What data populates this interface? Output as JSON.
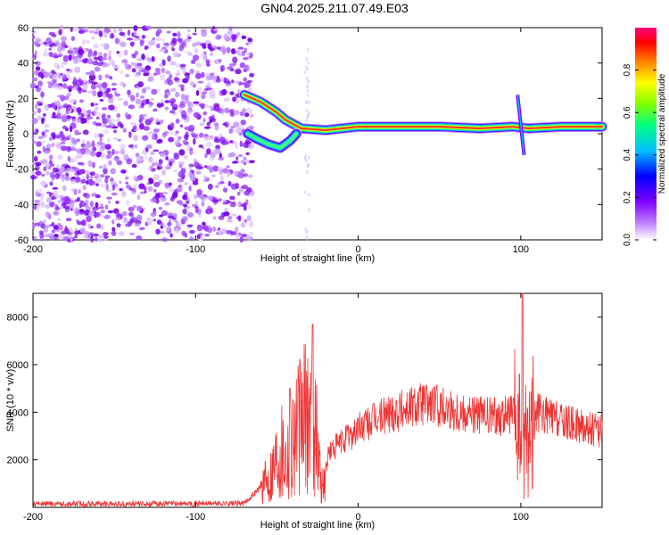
{
  "title": "GN04.2025.211.07.49.E03",
  "chart_data": [
    {
      "type": "heatmap",
      "xlabel": "Height of straight line (km)",
      "ylabel": "Frequency (Hz)",
      "xlim": [
        -200,
        150
      ],
      "ylim": [
        -60,
        60
      ],
      "x_ticks": [
        -200,
        -100,
        0,
        100
      ],
      "y_ticks": [
        -60,
        -40,
        -20,
        0,
        20,
        40,
        60
      ],
      "colorbar": {
        "label": "Normalized spectral amplitude",
        "range": [
          0,
          1
        ],
        "ticks": [
          0.0,
          0.2,
          0.4,
          0.6,
          0.8
        ],
        "colormap": [
          "#ffffff",
          "#c080ff",
          "#8000ff",
          "#0000ff",
          "#00c0ff",
          "#00ff80",
          "#80ff00",
          "#ffff00",
          "#ff8000",
          "#ff0000",
          "#ff0080"
        ]
      },
      "features": {
        "noise_region_x": [
          -200,
          -65
        ],
        "main_trace": [
          {
            "x": -70,
            "y": 22
          },
          {
            "x": -60,
            "y": 18
          },
          {
            "x": -50,
            "y": 12
          },
          {
            "x": -45,
            "y": 8
          },
          {
            "x": -35,
            "y": 3
          },
          {
            "x": -20,
            "y": 2
          },
          {
            "x": 0,
            "y": 4
          },
          {
            "x": 25,
            "y": 4
          },
          {
            "x": 50,
            "y": 4
          },
          {
            "x": 75,
            "y": 3
          },
          {
            "x": 95,
            "y": 4
          },
          {
            "x": 105,
            "y": 3
          },
          {
            "x": 125,
            "y": 4
          },
          {
            "x": 150,
            "y": 4
          }
        ],
        "lower_branch": [
          {
            "x": -68,
            "y": 0
          },
          {
            "x": -62,
            "y": -3
          },
          {
            "x": -55,
            "y": -6
          },
          {
            "x": -48,
            "y": -8
          },
          {
            "x": -42,
            "y": -4
          },
          {
            "x": -38,
            "y": 0
          }
        ],
        "spike_x": 98,
        "spike_range": [
          -12,
          22
        ]
      }
    },
    {
      "type": "line",
      "xlabel": "Height of straight line (km)",
      "ylabel": "SNR (10 * v/v)",
      "xlim": [
        -200,
        150
      ],
      "ylim": [
        0,
        9000
      ],
      "x_ticks": [
        -200,
        -100,
        0,
        100
      ],
      "y_ticks": [
        2000,
        4000,
        6000,
        8000
      ],
      "color": "#ee3333",
      "envelope": [
        {
          "x": -200,
          "y": 150
        },
        {
          "x": -150,
          "y": 150
        },
        {
          "x": -100,
          "y": 160
        },
        {
          "x": -70,
          "y": 170
        },
        {
          "x": -55,
          "y": 1200
        },
        {
          "x": -48,
          "y": 2600
        },
        {
          "x": -44,
          "y": 2200
        },
        {
          "x": -40,
          "y": 3000
        },
        {
          "x": -28,
          "y": 4200
        },
        {
          "x": -22,
          "y": 800
        },
        {
          "x": -18,
          "y": 2300
        },
        {
          "x": 0,
          "y": 3300
        },
        {
          "x": 20,
          "y": 4000
        },
        {
          "x": 40,
          "y": 4400
        },
        {
          "x": 60,
          "y": 4100
        },
        {
          "x": 80,
          "y": 3800
        },
        {
          "x": 95,
          "y": 3900
        },
        {
          "x": 100,
          "y": 3000
        },
        {
          "x": 106,
          "y": 3200
        },
        {
          "x": 110,
          "y": 4000
        },
        {
          "x": 125,
          "y": 3600
        },
        {
          "x": 150,
          "y": 3200
        }
      ],
      "peaks": [
        {
          "x": -42,
          "y": 5000
        },
        {
          "x": -28,
          "y": 7700
        },
        {
          "x": 101,
          "y": 9000
        }
      ]
    }
  ]
}
